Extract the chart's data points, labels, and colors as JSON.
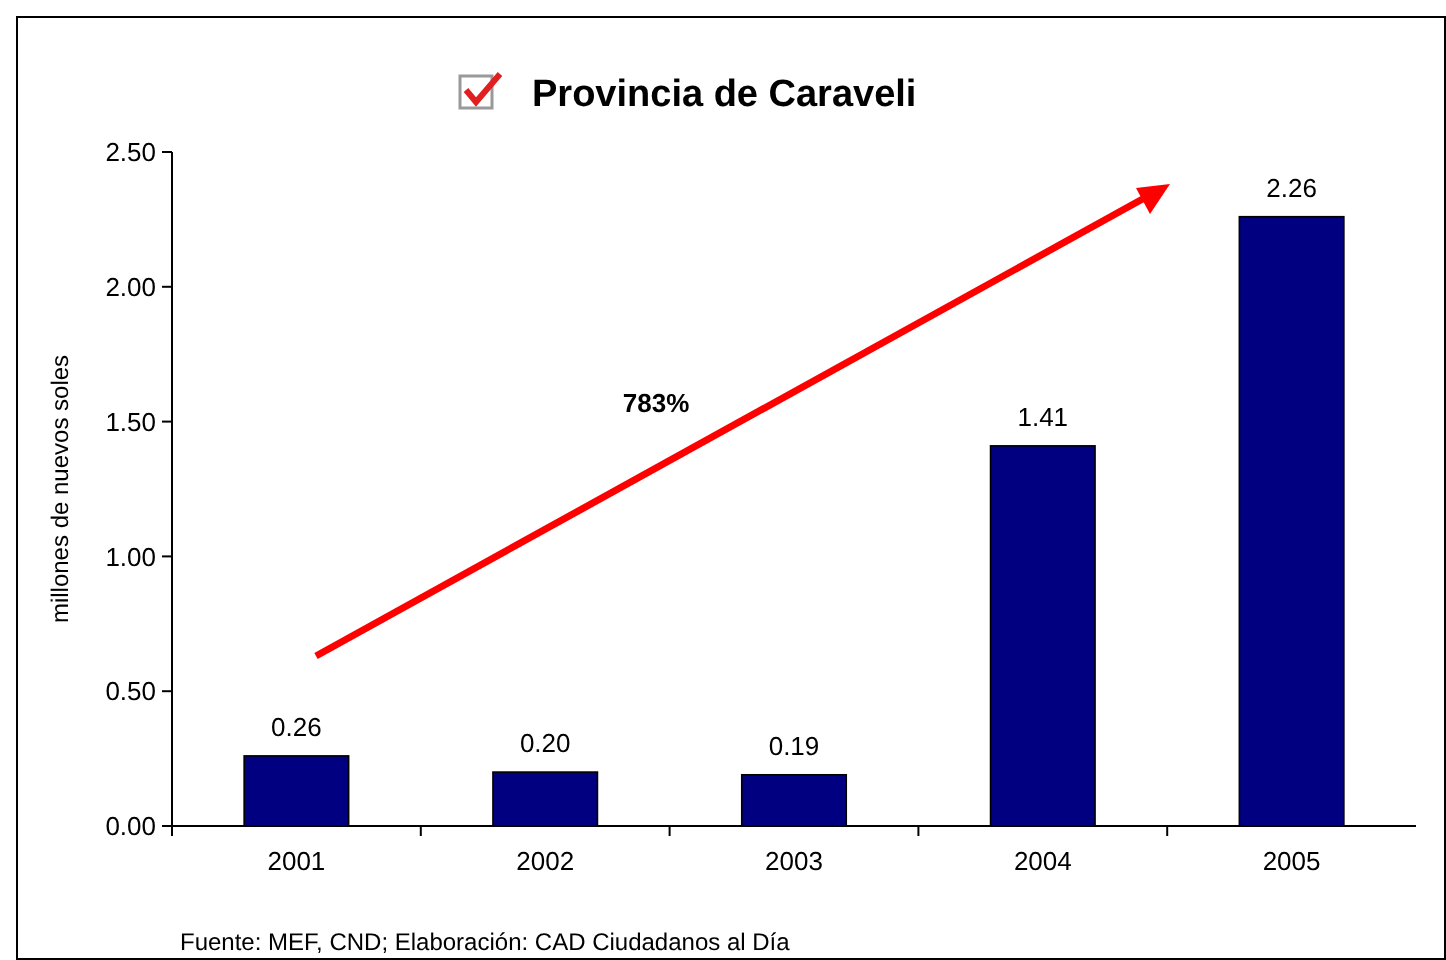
{
  "chart_data": {
    "type": "bar",
    "title": "Provincia de Caraveli",
    "ylabel": "millones de nuevos soles",
    "categories": [
      "2001",
      "2002",
      "2003",
      "2004",
      "2005"
    ],
    "values": [
      0.26,
      0.2,
      0.19,
      1.41,
      2.26
    ],
    "value_labels": [
      "0.26",
      "0.20",
      "0.19",
      "1.41",
      "2.26"
    ],
    "color": "#000080",
    "ylim": [
      0,
      2.5
    ],
    "yticks": [
      {
        "value": 0,
        "label": "0.00"
      },
      {
        "value": 0.5,
        "label": "0.50"
      },
      {
        "value": 1,
        "label": "1.00"
      },
      {
        "value": 1.5,
        "label": "1.50"
      },
      {
        "value": 2,
        "label": "2.00"
      },
      {
        "value": 2.5,
        "label": "2.50"
      }
    ],
    "grid": false,
    "annotations": [
      "783%",
      "Fuente: MEF, CND; Elaboración: CAD Ciudadanos al Día"
    ]
  }
}
